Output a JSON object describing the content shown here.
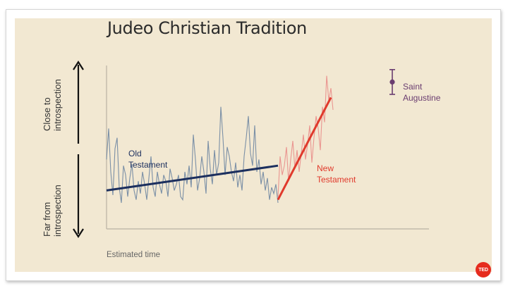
{
  "slide": {
    "title": "Judeo Christian Tradition",
    "logo_text": "TED"
  },
  "chart_data": {
    "type": "line",
    "title": "Judeo Christian Tradition",
    "xlabel": "Estimated time",
    "ylabel_top": [
      "Close to",
      "introspection"
    ],
    "ylabel_bottom": [
      "Far from",
      "introspection"
    ],
    "ylim": [
      0,
      100
    ],
    "grid": false,
    "series": [
      {
        "name": "Old Testament",
        "label_lines": [
          "Old",
          "Testament"
        ],
        "color": "#7a8fa6",
        "trend_color": "#1c2f5e",
        "x": [
          0,
          3,
          6,
          9,
          12,
          15,
          18,
          21,
          24,
          27,
          30,
          33,
          36,
          39,
          42,
          45,
          48,
          51,
          54,
          57,
          60,
          63,
          66,
          69,
          72,
          75,
          78,
          81,
          84,
          87,
          90,
          93,
          96,
          99,
          102,
          105,
          108,
          111,
          114,
          117,
          120,
          123,
          126,
          129,
          132,
          135,
          138,
          141,
          144,
          147,
          150,
          153,
          156,
          159,
          162,
          165,
          168,
          171,
          174,
          177,
          180,
          183,
          186,
          189,
          192,
          195,
          198,
          201,
          204,
          207,
          210,
          213,
          216,
          219,
          222,
          225,
          228,
          231,
          234,
          237,
          240,
          243
        ],
        "values": [
          38,
          58,
          30,
          15,
          45,
          52,
          20,
          10,
          34,
          28,
          14,
          26,
          35,
          18,
          12,
          24,
          16,
          30,
          22,
          12,
          26,
          40,
          20,
          14,
          30,
          22,
          16,
          28,
          24,
          14,
          32,
          26,
          18,
          22,
          28,
          14,
          12,
          30,
          22,
          34,
          20,
          54,
          38,
          18,
          26,
          40,
          30,
          16,
          50,
          32,
          22,
          44,
          28,
          36,
          72,
          52,
          28,
          46,
          40,
          30,
          24,
          36,
          20,
          28,
          18,
          40,
          52,
          66,
          42,
          34,
          60,
          30,
          38,
          22,
          30,
          18,
          26,
          12,
          20,
          16,
          22,
          10
        ],
        "trend": {
          "x": [
            0,
            243
          ],
          "values": [
            18,
            34
          ]
        }
      },
      {
        "name": "New Testament",
        "label_lines": [
          "New",
          "Testament"
        ],
        "color": "#ea9590",
        "trend_color": "#e03a2c",
        "x": [
          243,
          246,
          249,
          252,
          255,
          258,
          261,
          264,
          267,
          270,
          273,
          276,
          279,
          282,
          285,
          288,
          291,
          294,
          297,
          300,
          303,
          306,
          309,
          312,
          315,
          318,
          321
        ],
        "values": [
          14,
          40,
          28,
          34,
          46,
          24,
          38,
          50,
          32,
          44,
          30,
          42,
          54,
          38,
          48,
          60,
          36,
          52,
          66,
          58,
          44,
          72,
          62,
          92,
          76,
          84,
          70
        ],
        "trend": {
          "x": [
            243,
            318
          ],
          "values": [
            12,
            78
          ]
        }
      },
      {
        "name": "Saint Augustine",
        "label_lines": [
          "Saint",
          "Augustine"
        ],
        "type": "errorbar",
        "color": "#6a3d70",
        "x": 405,
        "value": 88,
        "range": [
          80,
          96
        ]
      }
    ]
  }
}
